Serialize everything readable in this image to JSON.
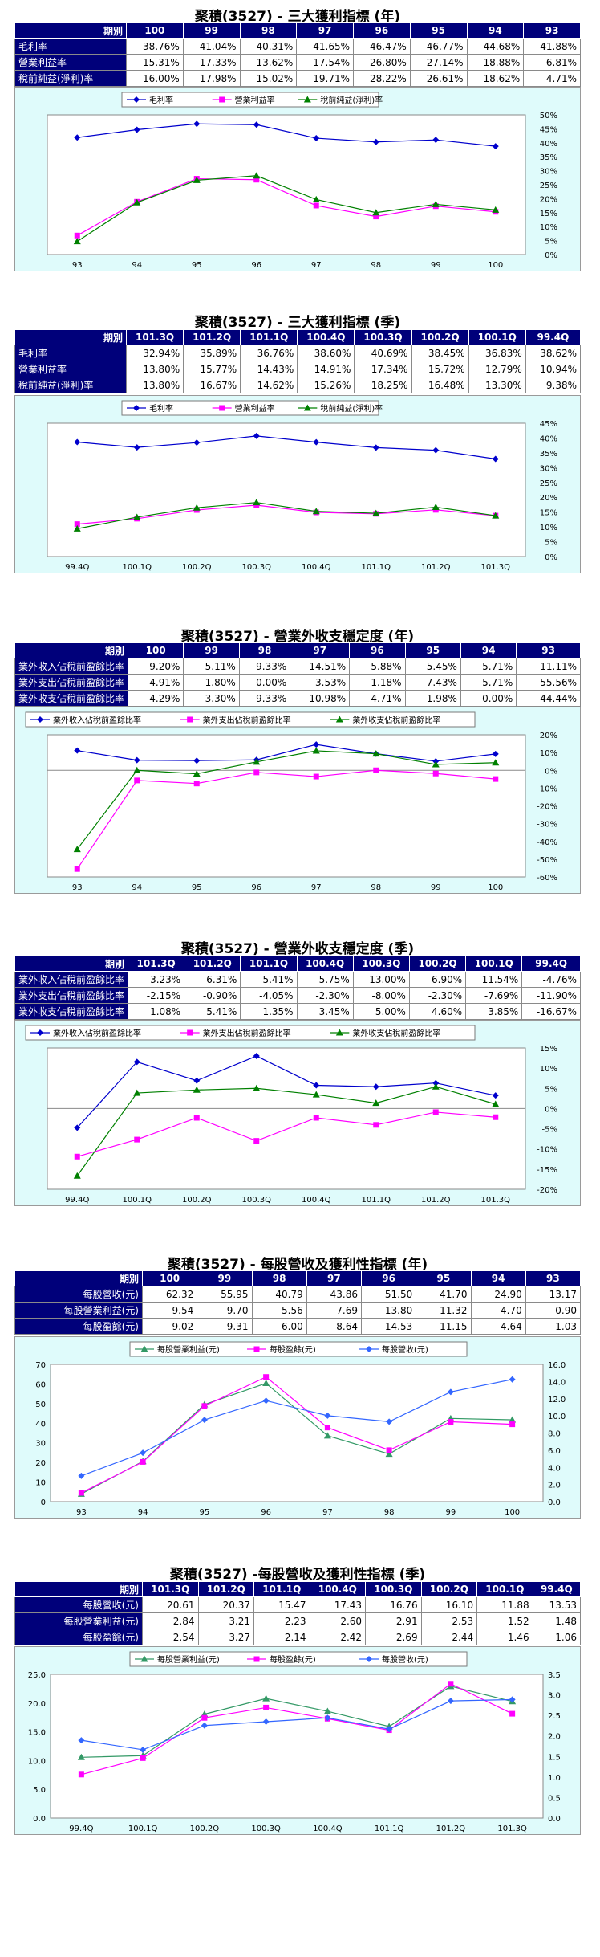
{
  "sections": [
    {
      "title": "聚積(3527) - 三大獲利指標 (年)",
      "table": {
        "header": [
          "期別",
          "100",
          "99",
          "98",
          "97",
          "96",
          "95",
          "94",
          "93"
        ],
        "rows": [
          {
            "label": "毛利率",
            "values": [
              "38.76%",
              "41.04%",
              "40.31%",
              "41.65%",
              "46.47%",
              "46.77%",
              "44.68%",
              "41.88%"
            ]
          },
          {
            "label": "營業利益率",
            "values": [
              "15.31%",
              "17.33%",
              "13.62%",
              "17.54%",
              "26.80%",
              "27.14%",
              "18.88%",
              "6.81%"
            ]
          },
          {
            "label": "稅前純益(淨利)率",
            "values": [
              "16.00%",
              "17.98%",
              "15.02%",
              "19.71%",
              "28.22%",
              "26.61%",
              "18.62%",
              "4.71%"
            ]
          }
        ]
      },
      "chart_data": {
        "type": "line",
        "categories": [
          "93",
          "94",
          "95",
          "96",
          "97",
          "98",
          "99",
          "100"
        ],
        "series": [
          {
            "name": "毛利率",
            "color": "#0000cc",
            "marker": "diamond",
            "values": [
              41.88,
              44.68,
              46.77,
              46.47,
              41.65,
              40.31,
              41.04,
              38.76
            ]
          },
          {
            "name": "營業利益率",
            "color": "#ff00ff",
            "marker": "square",
            "values": [
              6.81,
              18.88,
              27.14,
              26.8,
              17.54,
              13.62,
              17.33,
              15.31
            ]
          },
          {
            "name": "稅前純益(淨利)率",
            "color": "#008000",
            "marker": "triangle",
            "values": [
              4.71,
              18.62,
              26.61,
              28.22,
              19.71,
              15.02,
              17.98,
              16.0
            ]
          }
        ],
        "y_axis": {
          "side": "right",
          "min": 0,
          "max": 50,
          "step": 5,
          "format": "pct"
        }
      }
    },
    {
      "title": "聚積(3527) - 三大獲利指標 (季)",
      "table": {
        "header": [
          "期別",
          "101.3Q",
          "101.2Q",
          "101.1Q",
          "100.4Q",
          "100.3Q",
          "100.2Q",
          "100.1Q",
          "99.4Q"
        ],
        "rows": [
          {
            "label": "毛利率",
            "values": [
              "32.94%",
              "35.89%",
              "36.76%",
              "38.60%",
              "40.69%",
              "38.45%",
              "36.83%",
              "38.62%"
            ]
          },
          {
            "label": "營業利益率",
            "values": [
              "13.80%",
              "15.77%",
              "14.43%",
              "14.91%",
              "17.34%",
              "15.72%",
              "12.79%",
              "10.94%"
            ]
          },
          {
            "label": "稅前純益(淨利)率",
            "values": [
              "13.80%",
              "16.67%",
              "14.62%",
              "15.26%",
              "18.25%",
              "16.48%",
              "13.30%",
              "9.38%"
            ]
          }
        ]
      },
      "chart_data": {
        "type": "line",
        "categories": [
          "99.4Q",
          "100.1Q",
          "100.2Q",
          "100.3Q",
          "100.4Q",
          "101.1Q",
          "101.2Q",
          "101.3Q"
        ],
        "series": [
          {
            "name": "毛利率",
            "color": "#0000cc",
            "marker": "diamond",
            "values": [
              38.62,
              36.83,
              38.45,
              40.69,
              38.6,
              36.76,
              35.89,
              32.94
            ]
          },
          {
            "name": "營業利益率",
            "color": "#ff00ff",
            "marker": "square",
            "values": [
              10.94,
              12.79,
              15.72,
              17.34,
              14.91,
              14.43,
              15.77,
              13.8
            ]
          },
          {
            "name": "稅前純益(淨利)率",
            "color": "#008000",
            "marker": "triangle",
            "values": [
              9.38,
              13.3,
              16.48,
              18.25,
              15.26,
              14.62,
              16.67,
              13.8
            ]
          }
        ],
        "y_axis": {
          "side": "right",
          "min": 0,
          "max": 45,
          "step": 5,
          "format": "pct"
        }
      }
    },
    {
      "title": "聚積(3527) - 營業外收支穩定度 (年)",
      "table": {
        "header": [
          "期別",
          "100",
          "99",
          "98",
          "97",
          "96",
          "95",
          "94",
          "93"
        ],
        "rows": [
          {
            "label": "業外收入佔稅前盈餘比率",
            "values": [
              "9.20%",
              "5.11%",
              "9.33%",
              "14.51%",
              "5.88%",
              "5.45%",
              "5.71%",
              "11.11%"
            ]
          },
          {
            "label": "業外支出佔稅前盈餘比率",
            "values": [
              "-4.91%",
              "-1.80%",
              "0.00%",
              "-3.53%",
              "-1.18%",
              "-7.43%",
              "-5.71%",
              "-55.56%"
            ]
          },
          {
            "label": "業外收支佔稅前盈餘比率",
            "values": [
              "4.29%",
              "3.30%",
              "9.33%",
              "10.98%",
              "4.71%",
              "-1.98%",
              "0.00%",
              "-44.44%"
            ]
          }
        ]
      },
      "chart_data": {
        "type": "line",
        "categories": [
          "93",
          "94",
          "95",
          "96",
          "97",
          "98",
          "99",
          "100"
        ],
        "series": [
          {
            "name": "業外收入佔稅前盈餘比率",
            "color": "#0000cc",
            "marker": "diamond",
            "values": [
              11.11,
              5.71,
              5.45,
              5.88,
              14.51,
              9.33,
              5.11,
              9.2
            ]
          },
          {
            "name": "業外支出佔稅前盈餘比率",
            "color": "#ff00ff",
            "marker": "square",
            "values": [
              -55.56,
              -5.71,
              -7.43,
              -1.18,
              -3.53,
              0.0,
              -1.8,
              -4.91
            ]
          },
          {
            "name": "業外收支佔稅前盈餘比率",
            "color": "#008000",
            "marker": "triangle",
            "values": [
              -44.44,
              0.0,
              -1.98,
              4.71,
              10.98,
              9.33,
              3.3,
              4.29
            ]
          }
        ],
        "y_axis": {
          "side": "right",
          "min": -60,
          "max": 20,
          "step": 10,
          "format": "pct"
        }
      }
    },
    {
      "title": "聚積(3527) - 營業外收支穩定度 (季)",
      "table": {
        "header": [
          "期別",
          "101.3Q",
          "101.2Q",
          "101.1Q",
          "100.4Q",
          "100.3Q",
          "100.2Q",
          "100.1Q",
          "99.4Q"
        ],
        "rows": [
          {
            "label": "業外收入佔稅前盈餘比率",
            "values": [
              "3.23%",
              "6.31%",
              "5.41%",
              "5.75%",
              "13.00%",
              "6.90%",
              "11.54%",
              "-4.76%"
            ]
          },
          {
            "label": "業外支出佔稅前盈餘比率",
            "values": [
              "-2.15%",
              "-0.90%",
              "-4.05%",
              "-2.30%",
              "-8.00%",
              "-2.30%",
              "-7.69%",
              "-11.90%"
            ]
          },
          {
            "label": "業外收支佔稅前盈餘比率",
            "values": [
              "1.08%",
              "5.41%",
              "1.35%",
              "3.45%",
              "5.00%",
              "4.60%",
              "3.85%",
              "-16.67%"
            ]
          }
        ]
      },
      "chart_data": {
        "type": "line",
        "categories": [
          "99.4Q",
          "100.1Q",
          "100.2Q",
          "100.3Q",
          "100.4Q",
          "101.1Q",
          "101.2Q",
          "101.3Q"
        ],
        "series": [
          {
            "name": "業外收入佔稅前盈餘比率",
            "color": "#0000cc",
            "marker": "diamond",
            "values": [
              -4.76,
              11.54,
              6.9,
              13.0,
              5.75,
              5.41,
              6.31,
              3.23
            ]
          },
          {
            "name": "業外支出佔稅前盈餘比率",
            "color": "#ff00ff",
            "marker": "square",
            "values": [
              -11.9,
              -7.69,
              -2.3,
              -8.0,
              -2.3,
              -4.05,
              -0.9,
              -2.15
            ]
          },
          {
            "name": "業外收支佔稅前盈餘比率",
            "color": "#008000",
            "marker": "triangle",
            "values": [
              -16.67,
              3.85,
              4.6,
              5.0,
              3.45,
              1.35,
              5.41,
              1.08
            ]
          }
        ],
        "y_axis": {
          "side": "right",
          "min": -20,
          "max": 15,
          "step": 5,
          "format": "pct"
        }
      }
    },
    {
      "title": "聚積(3527) - 每股營收及獲利性指標 (年)",
      "table": {
        "header": [
          "期別",
          "100",
          "99",
          "98",
          "97",
          "96",
          "95",
          "94",
          "93"
        ],
        "rows": [
          {
            "label": "每股營收(元)",
            "values": [
              "62.32",
              "55.95",
              "40.79",
              "43.86",
              "51.50",
              "41.70",
              "24.90",
              "13.17"
            ]
          },
          {
            "label": "每股營業利益(元)",
            "values": [
              "9.54",
              "9.70",
              "5.56",
              "7.69",
              "13.80",
              "11.32",
              "4.70",
              "0.90"
            ]
          },
          {
            "label": "每股盈餘(元)",
            "values": [
              "9.02",
              "9.31",
              "6.00",
              "8.64",
              "14.53",
              "11.15",
              "4.64",
              "1.03"
            ]
          }
        ]
      },
      "chart_data": {
        "type": "line",
        "categories": [
          "93",
          "94",
          "95",
          "96",
          "97",
          "98",
          "99",
          "100"
        ],
        "series": [
          {
            "name": "每股營業利益(元)",
            "color": "#339966",
            "marker": "triangle",
            "axis": "right",
            "values": [
              0.9,
              4.7,
              11.32,
              13.8,
              7.69,
              5.56,
              9.7,
              9.54
            ]
          },
          {
            "name": "每股盈餘(元)",
            "color": "#ff00ff",
            "marker": "square",
            "axis": "right",
            "values": [
              1.03,
              4.64,
              11.15,
              14.53,
              8.64,
              6.0,
              9.31,
              9.02
            ]
          },
          {
            "name": "每股營收(元)",
            "color": "#3366ff",
            "marker": "diamond",
            "axis": "left",
            "values": [
              13.17,
              24.9,
              41.7,
              51.5,
              43.86,
              40.79,
              55.95,
              62.32
            ]
          }
        ],
        "y_axis_left": {
          "min": 0,
          "max": 70,
          "step": 10,
          "format": "int"
        },
        "y_axis_right": {
          "min": 0,
          "max": 16,
          "step": 2,
          "format": "dec1"
        }
      }
    },
    {
      "title": "聚積(3527) -每股營收及獲利性指標 (季)",
      "table": {
        "header": [
          "期別",
          "101.3Q",
          "101.2Q",
          "101.1Q",
          "100.4Q",
          "100.3Q",
          "100.2Q",
          "100.1Q",
          "99.4Q"
        ],
        "rows": [
          {
            "label": "每股營收(元)",
            "values": [
              "20.61",
              "20.37",
              "15.47",
              "17.43",
              "16.76",
              "16.10",
              "11.88",
              "13.53"
            ]
          },
          {
            "label": "每股營業利益(元)",
            "values": [
              "2.84",
              "3.21",
              "2.23",
              "2.60",
              "2.91",
              "2.53",
              "1.52",
              "1.48"
            ]
          },
          {
            "label": "每股盈餘(元)",
            "values": [
              "2.54",
              "3.27",
              "2.14",
              "2.42",
              "2.69",
              "2.44",
              "1.46",
              "1.06"
            ]
          }
        ]
      },
      "chart_data": {
        "type": "line",
        "categories": [
          "99.4Q",
          "100.1Q",
          "100.2Q",
          "100.3Q",
          "100.4Q",
          "101.1Q",
          "101.2Q",
          "101.3Q"
        ],
        "series": [
          {
            "name": "每股營業利益(元)",
            "color": "#339966",
            "marker": "triangle",
            "axis": "right",
            "values": [
              1.48,
              1.52,
              2.53,
              2.91,
              2.6,
              2.23,
              3.21,
              2.84
            ]
          },
          {
            "name": "每股盈餘(元)",
            "color": "#ff00ff",
            "marker": "square",
            "axis": "right",
            "values": [
              1.06,
              1.46,
              2.44,
              2.69,
              2.42,
              2.14,
              3.27,
              2.54
            ]
          },
          {
            "name": "每股營收(元)",
            "color": "#3366ff",
            "marker": "diamond",
            "axis": "left",
            "values": [
              13.53,
              11.88,
              16.1,
              16.76,
              17.43,
              15.47,
              20.37,
              20.61
            ]
          }
        ],
        "y_axis_left": {
          "min": 0,
          "max": 25,
          "step": 5,
          "format": "dec1"
        },
        "y_axis_right": {
          "min": 0,
          "max": 3.5,
          "step": 0.5,
          "format": "dec1"
        }
      }
    }
  ]
}
